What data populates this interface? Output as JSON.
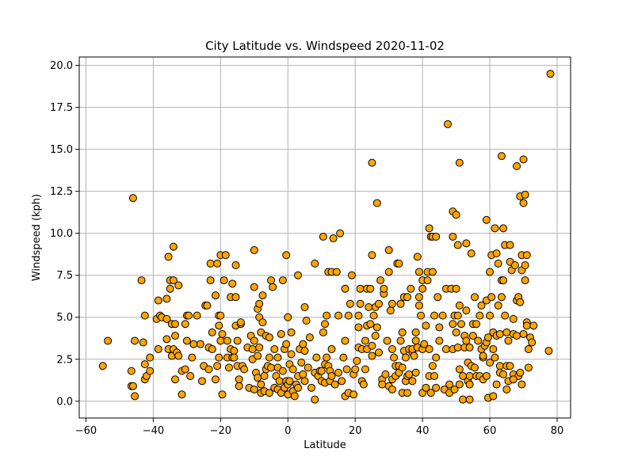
{
  "chart_data": {
    "type": "scatter",
    "title": "City Latitude vs. Windspeed 2020-11-02",
    "xlabel": "Latitude",
    "ylabel": "Windspeed (kph)",
    "xlim": [
      -62,
      84
    ],
    "ylim": [
      -1,
      20.5
    ],
    "xticks": [
      "−60",
      "−40",
      "−20",
      "0",
      "20",
      "40",
      "60",
      "80"
    ],
    "xtick_values": [
      -60,
      -40,
      -20,
      0,
      20,
      40,
      60,
      80
    ],
    "yticks": [
      "0.0",
      "2.5",
      "5.0",
      "7.5",
      "10.0",
      "12.5",
      "15.0",
      "17.5",
      "20.0"
    ],
    "ytick_values": [
      0,
      2.5,
      5,
      7.5,
      10,
      12.5,
      15,
      17.5,
      20
    ],
    "grid": true,
    "marker_color": "#ffa500",
    "marker_edge": "#000000",
    "points": [
      [
        -55,
        2.1
      ],
      [
        -53.5,
        3.6
      ],
      [
        -46.5,
        1.8
      ],
      [
        -46.5,
        0.9
      ],
      [
        -46,
        0.9
      ],
      [
        -46,
        12.1
      ],
      [
        -45.5,
        3.6
      ],
      [
        -45.5,
        0.3
      ],
      [
        -43.5,
        7.2
      ],
      [
        -43,
        3.5
      ],
      [
        -42.5,
        5.1
      ],
      [
        -42.5,
        2.2
      ],
      [
        -42.5,
        1.3
      ],
      [
        -42,
        1.5
      ],
      [
        -41,
        1.8
      ],
      [
        -41,
        2.6
      ],
      [
        -39,
        4.9
      ],
      [
        -38.5,
        6.0
      ],
      [
        -38.5,
        3.1
      ],
      [
        -38,
        5.1
      ],
      [
        -37.5,
        5.0
      ],
      [
        -36,
        6.1
      ],
      [
        -36,
        4.9
      ],
      [
        -36,
        3.7
      ],
      [
        -35.5,
        3.1
      ],
      [
        -35.5,
        8.6
      ],
      [
        -35,
        7.2
      ],
      [
        -35,
        6.7
      ],
      [
        -34.5,
        4.6
      ],
      [
        -34.5,
        2.7
      ],
      [
        -34,
        9.2
      ],
      [
        -34,
        7.2
      ],
      [
        -34,
        3.1
      ],
      [
        -33.5,
        1.3
      ],
      [
        -33.5,
        3.9
      ],
      [
        -33.5,
        4.6
      ],
      [
        -33,
        2.9
      ],
      [
        -32.5,
        6.9
      ],
      [
        -32.5,
        2.7
      ],
      [
        -31.5,
        1.8
      ],
      [
        -31.5,
        0.4
      ],
      [
        -30.5,
        1.9
      ],
      [
        -30.5,
        4.6
      ],
      [
        -30,
        5.1
      ],
      [
        -30,
        3.6
      ],
      [
        -29.5,
        5.1
      ],
      [
        -29,
        1.5
      ],
      [
        -28.5,
        2.6
      ],
      [
        -28,
        3.4
      ],
      [
        -27,
        5.1
      ],
      [
        -26,
        3.4
      ],
      [
        -25.5,
        1.2
      ],
      [
        -25,
        2.1
      ],
      [
        -24.5,
        5.7
      ],
      [
        -24,
        5.7
      ],
      [
        -23.5,
        3.2
      ],
      [
        -23.5,
        1.9
      ],
      [
        -23,
        7.2
      ],
      [
        -23,
        8.2
      ],
      [
        -22.5,
        3.1
      ],
      [
        -22.5,
        4.1
      ],
      [
        -21.5,
        1.3
      ],
      [
        -21.5,
        6.3
      ],
      [
        -21,
        2.1
      ],
      [
        -21,
        8.2
      ],
      [
        -20.5,
        2.6
      ],
      [
        -20.5,
        4.5
      ],
      [
        -20.5,
        5.1
      ],
      [
        -20,
        5.1
      ],
      [
        -20,
        8.7
      ],
      [
        -20,
        3.6
      ],
      [
        -19.5,
        4.0
      ],
      [
        -19.5,
        0.4
      ],
      [
        -19,
        7.2
      ],
      [
        -18.5,
        8.7
      ],
      [
        -18,
        2.6
      ],
      [
        -18,
        3.6
      ],
      [
        -17.5,
        2.0
      ],
      [
        -17,
        3.1
      ],
      [
        -17,
        6.2
      ],
      [
        -16.5,
        2.6
      ],
      [
        -16.5,
        7.0
      ],
      [
        -16,
        3.0
      ],
      [
        -16,
        2.6
      ],
      [
        -15.5,
        6.2
      ],
      [
        -15.5,
        8.1
      ],
      [
        -15.5,
        4.5
      ],
      [
        -15,
        3.6
      ],
      [
        -15,
        2.1
      ],
      [
        -14.5,
        1.3
      ],
      [
        -14.5,
        0.9
      ],
      [
        -14,
        4.6
      ],
      [
        -14,
        4.7
      ],
      [
        -13.5,
        2.1
      ],
      [
        -13,
        1.9
      ],
      [
        -12,
        3.2
      ],
      [
        -11.5,
        0.8
      ],
      [
        -11,
        3.9
      ],
      [
        -10.5,
        2.5
      ],
      [
        -10.5,
        3.1
      ],
      [
        -10,
        3.6
      ],
      [
        -10,
        0.7
      ],
      [
        -10,
        6.8
      ],
      [
        -10,
        9.0
      ],
      [
        -9.5,
        1.7
      ],
      [
        -9,
        2.7
      ],
      [
        -9,
        5.5
      ],
      [
        -9,
        1.4
      ],
      [
        -8.5,
        5.8
      ],
      [
        -8.5,
        5.0
      ],
      [
        -8.5,
        3.2
      ],
      [
        -8,
        4.1
      ],
      [
        -8,
        1.0
      ],
      [
        -8,
        0.5
      ],
      [
        -7.5,
        4.7
      ],
      [
        -7.5,
        6.3
      ],
      [
        -7,
        1.5
      ],
      [
        -7,
        0.6
      ],
      [
        -6.5,
        1.9
      ],
      [
        -6.5,
        3.9
      ],
      [
        -6,
        2.1
      ],
      [
        -5.5,
        2.6
      ],
      [
        -5.5,
        0.5
      ],
      [
        -5.5,
        3.8
      ],
      [
        -5,
        7.2
      ],
      [
        -5,
        2.0
      ],
      [
        -4.5,
        6.8
      ],
      [
        -4,
        0.8
      ],
      [
        -4,
        3.1
      ],
      [
        -3.5,
        1.5
      ],
      [
        -3,
        2.6
      ],
      [
        -3,
        0.7
      ],
      [
        -3,
        2.0
      ],
      [
        -2.5,
        1.2
      ],
      [
        -2,
        4.0
      ],
      [
        -2,
        0.5
      ],
      [
        -1.5,
        7.2
      ],
      [
        -1.5,
        1.8
      ],
      [
        -1,
        3.1
      ],
      [
        -1,
        0.8
      ],
      [
        -0.5,
        1.2
      ],
      [
        -0.5,
        3.4
      ],
      [
        -0.5,
        8.7
      ],
      [
        0,
        5.0
      ],
      [
        0,
        0.4
      ],
      [
        0,
        1.0
      ],
      [
        0.5,
        2.2
      ],
      [
        0.5,
        1.2
      ],
      [
        1,
        4.1
      ],
      [
        1,
        2.8
      ],
      [
        1.5,
        1.9
      ],
      [
        1.5,
        0.6
      ],
      [
        2,
        0.3
      ],
      [
        2.5,
        1.0
      ],
      [
        3,
        7.5
      ],
      [
        3,
        1.5
      ],
      [
        3,
        0.8
      ],
      [
        3.5,
        3.1
      ],
      [
        4,
        2.3
      ],
      [
        4.5,
        1.6
      ],
      [
        4.5,
        3.4
      ],
      [
        5,
        5.6
      ],
      [
        5,
        3.0
      ],
      [
        5,
        1.2
      ],
      [
        5.5,
        4.8
      ],
      [
        6,
        2.0
      ],
      [
        6.5,
        3.8
      ],
      [
        7,
        0.8
      ],
      [
        8,
        1.7
      ],
      [
        8,
        8.2
      ],
      [
        8,
        0.1
      ],
      [
        8.5,
        2.6
      ],
      [
        9,
        1.5
      ],
      [
        9.5,
        1.8
      ],
      [
        10,
        1.2
      ],
      [
        10,
        1.8
      ],
      [
        10.5,
        4.1
      ],
      [
        10.5,
        9.8
      ],
      [
        11,
        1.1
      ],
      [
        11,
        2.2
      ],
      [
        11,
        4.6
      ],
      [
        11.5,
        2.6
      ],
      [
        11.5,
        5.1
      ],
      [
        12,
        7.7
      ],
      [
        12,
        2.1
      ],
      [
        12.5,
        1.8
      ],
      [
        12.5,
        1.2
      ],
      [
        13,
        1.5
      ],
      [
        13,
        7.7
      ],
      [
        13,
        3.1
      ],
      [
        13.5,
        9.7
      ],
      [
        14,
        1.0
      ],
      [
        14.5,
        7.7
      ],
      [
        15,
        5.1
      ],
      [
        15,
        1.7
      ],
      [
        15.5,
        10.0
      ],
      [
        16,
        1.2
      ],
      [
        16.5,
        2.6
      ],
      [
        17,
        3.6
      ],
      [
        17,
        6.7
      ],
      [
        17,
        0.3
      ],
      [
        17.5,
        1.9
      ],
      [
        18,
        5.1
      ],
      [
        18,
        0.5
      ],
      [
        18.5,
        5.8
      ],
      [
        19,
        7.5
      ],
      [
        19.5,
        1.6
      ],
      [
        19.5,
        0.4
      ],
      [
        20,
        1.9
      ],
      [
        20.5,
        2.4
      ],
      [
        21,
        3.2
      ],
      [
        21,
        5.1
      ],
      [
        21,
        4.4
      ],
      [
        21.5,
        5.8
      ],
      [
        21.5,
        6.7
      ],
      [
        22,
        3.1
      ],
      [
        22,
        1.2
      ],
      [
        22.5,
        1.0
      ],
      [
        23,
        3.6
      ],
      [
        23,
        1.9
      ],
      [
        23.5,
        4.5
      ],
      [
        23.5,
        3.1
      ],
      [
        23.5,
        6.7
      ],
      [
        24,
        5.6
      ],
      [
        24.5,
        4.6
      ],
      [
        24.5,
        6.7
      ],
      [
        25,
        3.3
      ],
      [
        25,
        8.7
      ],
      [
        25,
        14.2
      ],
      [
        25,
        2.7
      ],
      [
        25.5,
        5.1
      ],
      [
        26,
        3.9
      ],
      [
        26,
        5.6
      ],
      [
        26.5,
        4.4
      ],
      [
        26.5,
        11.8
      ],
      [
        27,
        2.9
      ],
      [
        27,
        5.8
      ],
      [
        27.5,
        7.2
      ],
      [
        28,
        1.3
      ],
      [
        28,
        1.0
      ],
      [
        28.5,
        6.4
      ],
      [
        28.5,
        6.7
      ],
      [
        29,
        1.6
      ],
      [
        29.5,
        3.6
      ],
      [
        30,
        9.0
      ],
      [
        30,
        7.7
      ],
      [
        30,
        0.9
      ],
      [
        30.5,
        5.4
      ],
      [
        31,
        1.3
      ],
      [
        31,
        3.1
      ],
      [
        31,
        5.8
      ],
      [
        31,
        0.7
      ],
      [
        31.5,
        2.6
      ],
      [
        32,
        2.1
      ],
      [
        32,
        1.5
      ],
      [
        32.5,
        8.2
      ],
      [
        33,
        8.2
      ],
      [
        33,
        2.1
      ],
      [
        33,
        1.7
      ],
      [
        33.5,
        5.8
      ],
      [
        33.5,
        3.6
      ],
      [
        34,
        0.5
      ],
      [
        34,
        2.0
      ],
      [
        34,
        4.1
      ],
      [
        34.5,
        6.2
      ],
      [
        34.5,
        3.0
      ],
      [
        35,
        2.6
      ],
      [
        35,
        1.2
      ],
      [
        35.5,
        1.5
      ],
      [
        35.5,
        6.2
      ],
      [
        35.5,
        0.5
      ],
      [
        36,
        3.1
      ],
      [
        36,
        1.6
      ],
      [
        36.5,
        6.7
      ],
      [
        37,
        2.9
      ],
      [
        37,
        3.1
      ],
      [
        37,
        1.2
      ],
      [
        37.5,
        2.7
      ],
      [
        38,
        1.7
      ],
      [
        38,
        4.1
      ],
      [
        38,
        3.6
      ],
      [
        38.5,
        8.6
      ],
      [
        38.5,
        3.2
      ],
      [
        39,
        6.2
      ],
      [
        39,
        7.7
      ],
      [
        39,
        5.7
      ],
      [
        39.5,
        5.1
      ],
      [
        40,
        6.7
      ],
      [
        40,
        3.1
      ],
      [
        40,
        7.2
      ],
      [
        40,
        0.5
      ],
      [
        40.5,
        3.4
      ],
      [
        41,
        4.5
      ],
      [
        41,
        0.8
      ],
      [
        41.5,
        7.2
      ],
      [
        41.5,
        7.7
      ],
      [
        42,
        3.1
      ],
      [
        42,
        10.3
      ],
      [
        42,
        1.5
      ],
      [
        42.5,
        9.8
      ],
      [
        42.5,
        0.5
      ],
      [
        43,
        7.7
      ],
      [
        43,
        9.8
      ],
      [
        43,
        2.1
      ],
      [
        43.5,
        1.5
      ],
      [
        43.5,
        5.1
      ],
      [
        44,
        2.6
      ],
      [
        44,
        9.8
      ],
      [
        44,
        0.8
      ],
      [
        44.5,
        6.2
      ],
      [
        45,
        4.4
      ],
      [
        45,
        3.6
      ],
      [
        46,
        5.1
      ],
      [
        46.5,
        0.7
      ],
      [
        47,
        3.1
      ],
      [
        47,
        6.7
      ],
      [
        47.5,
        16.5
      ],
      [
        48,
        1.0
      ],
      [
        48,
        0.5
      ],
      [
        48.5,
        6.7
      ],
      [
        49,
        3.1
      ],
      [
        49,
        4.6
      ],
      [
        49,
        9.8
      ],
      [
        49,
        11.3
      ],
      [
        49.5,
        5.1
      ],
      [
        49.5,
        0.7
      ],
      [
        50,
        4.1
      ],
      [
        50,
        11.1
      ],
      [
        50,
        6.7
      ],
      [
        50.5,
        5.1
      ],
      [
        50.5,
        9.3
      ],
      [
        50.5,
        3.2
      ],
      [
        51,
        1.9
      ],
      [
        51,
        5.7
      ],
      [
        51,
        14.2
      ],
      [
        51,
        1.0
      ],
      [
        51.5,
        4.6
      ],
      [
        52,
        0.1
      ],
      [
        52,
        1.5
      ],
      [
        52.5,
        3.2
      ],
      [
        52.5,
        3.9
      ],
      [
        53,
        3.6
      ],
      [
        53,
        9.4
      ],
      [
        53,
        5.4
      ],
      [
        53.5,
        1.2
      ],
      [
        53.5,
        2.3
      ],
      [
        54,
        0.1
      ],
      [
        54,
        1.5
      ],
      [
        54,
        3.2
      ],
      [
        54,
        1.0
      ],
      [
        54.5,
        8.8
      ],
      [
        54.5,
        2.1
      ],
      [
        55,
        4.6
      ],
      [
        55,
        3.9
      ],
      [
        55.5,
        6.2
      ],
      [
        55.5,
        2.0
      ],
      [
        56,
        1.5
      ],
      [
        56,
        4.6
      ],
      [
        56.5,
        3.6
      ],
      [
        57,
        5.1
      ],
      [
        57,
        1.5
      ],
      [
        57.5,
        3.1
      ],
      [
        57.5,
        5.7
      ],
      [
        58,
        1.3
      ],
      [
        58,
        2.6
      ],
      [
        58,
        2.7
      ],
      [
        58.5,
        3.3
      ],
      [
        59,
        1.5
      ],
      [
        59,
        3.5
      ],
      [
        59,
        6.0
      ],
      [
        59,
        10.8
      ],
      [
        59.5,
        0.2
      ],
      [
        59.5,
        3.8
      ],
      [
        60,
        5.1
      ],
      [
        60,
        7.7
      ],
      [
        60,
        2.3
      ],
      [
        60.5,
        6.2
      ],
      [
        60.5,
        8.7
      ],
      [
        61,
        0.3
      ],
      [
        61,
        3.1
      ],
      [
        61,
        4.1
      ],
      [
        61.5,
        10.3
      ],
      [
        61.5,
        2.6
      ],
      [
        62,
        1.0
      ],
      [
        62,
        8.8
      ],
      [
        62,
        3.9
      ],
      [
        62.5,
        8.2
      ],
      [
        62.5,
        5.7
      ],
      [
        63,
        4.0
      ],
      [
        63,
        2.1
      ],
      [
        63,
        1.7
      ],
      [
        63.5,
        14.6
      ],
      [
        63.5,
        7.2
      ],
      [
        63.5,
        6.2
      ],
      [
        64,
        10.3
      ],
      [
        64,
        7.2
      ],
      [
        64,
        1.6
      ],
      [
        64.5,
        5.1
      ],
      [
        64.5,
        9.3
      ],
      [
        65,
        4.1
      ],
      [
        65,
        0.7
      ],
      [
        65,
        2.1
      ],
      [
        65.5,
        3.6
      ],
      [
        65.5,
        1.2
      ],
      [
        66,
        2.1
      ],
      [
        66,
        8.3
      ],
      [
        66,
        9.3
      ],
      [
        66.5,
        7.8
      ],
      [
        67,
        4.0
      ],
      [
        67,
        1.6
      ],
      [
        67,
        4.9
      ],
      [
        67.5,
        8.1
      ],
      [
        68,
        6.0
      ],
      [
        68,
        3.9
      ],
      [
        68,
        14.0
      ],
      [
        68.5,
        1.5
      ],
      [
        68.5,
        6.2
      ],
      [
        69,
        12.2
      ],
      [
        69,
        5.9
      ],
      [
        69.5,
        1.0
      ],
      [
        69.5,
        8.7
      ],
      [
        69.5,
        7.8
      ],
      [
        70,
        11.8
      ],
      [
        70,
        14.4
      ],
      [
        70,
        4.0
      ],
      [
        70.5,
        8.1
      ],
      [
        70.5,
        7.2
      ],
      [
        70.5,
        12.3
      ],
      [
        71,
        4.7
      ],
      [
        71,
        8.7
      ],
      [
        71,
        4.5
      ],
      [
        71.5,
        2.0
      ],
      [
        71.5,
        3.1
      ],
      [
        72,
        3.8
      ],
      [
        72.5,
        3.5
      ],
      [
        73,
        4.5
      ],
      [
        77.5,
        3.0
      ],
      [
        78,
        19.5
      ],
      [
        69,
        1.7
      ],
      [
        67,
        1.3
      ]
    ]
  }
}
